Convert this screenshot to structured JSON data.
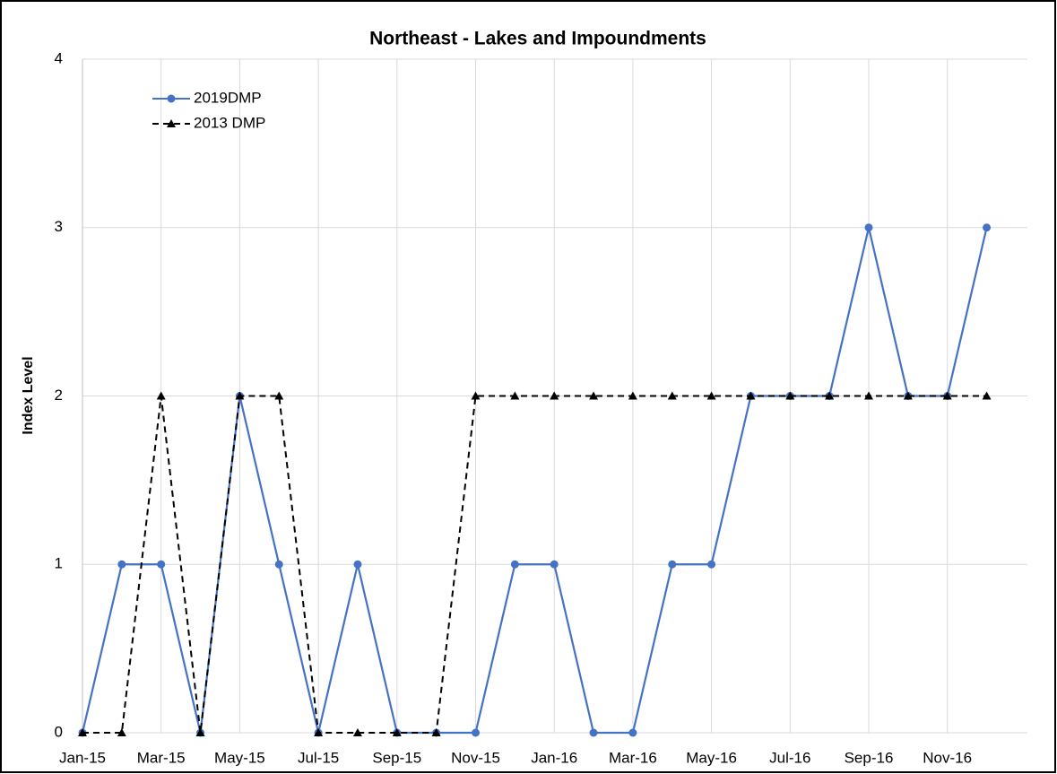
{
  "chart_data": {
    "type": "line",
    "title": "Northeast - Lakes and Impoundments",
    "y_label": "Index Level",
    "categories": [
      "Jan-15",
      null,
      "Mar-15",
      null,
      "May-15",
      null,
      "Jul-15",
      null,
      "Sep-15",
      null,
      "Nov-15",
      null,
      "Jan-16",
      null,
      "Mar-16",
      null,
      "May-16",
      null,
      "Jul-16",
      null,
      "Sep-16",
      null,
      "Nov-16",
      null
    ],
    "series": [
      {
        "name": "2019DMP",
        "color": "#4472c4",
        "line_style": "solid",
        "marker": "circle",
        "values": [
          0,
          1,
          1,
          0,
          2,
          1,
          0,
          1,
          0,
          0,
          0,
          1,
          1,
          0,
          0,
          1,
          1,
          2,
          2,
          2,
          3,
          2,
          2,
          3
        ]
      },
      {
        "name": "2013 DMP",
        "color": "#000000",
        "line_style": "dashed",
        "marker": "triangle",
        "values": [
          0,
          0,
          2,
          0,
          2,
          2,
          0,
          0,
          0,
          0,
          2,
          2,
          2,
          2,
          2,
          2,
          2,
          2,
          2,
          2,
          2,
          2,
          2,
          2
        ]
      }
    ],
    "ylim": [
      0,
      4
    ],
    "yticks": [
      0,
      1,
      2,
      3,
      4
    ],
    "grid": true,
    "legend": "upper left"
  }
}
